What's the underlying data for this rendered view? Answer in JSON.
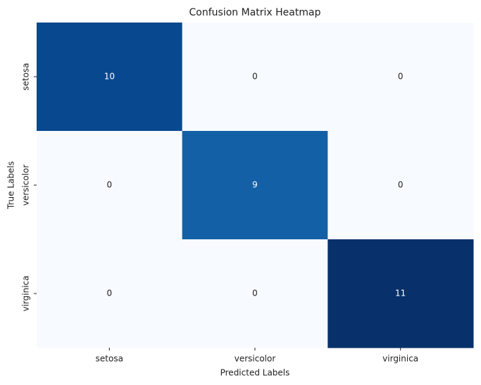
{
  "chart_data": {
    "type": "heatmap",
    "title": "Confusion Matrix Heatmap",
    "x_label": "Predicted Labels",
    "y_label": "True Labels",
    "x_categories": [
      "setosa",
      "versicolor",
      "virginica"
    ],
    "y_categories": [
      "setosa",
      "versicolor",
      "virginica"
    ],
    "values": [
      [
        10,
        0,
        0
      ],
      [
        0,
        9,
        0
      ],
      [
        0,
        0,
        11
      ]
    ],
    "colormap": [
      "#f7fbff",
      "#deebf7",
      "#c6dbef",
      "#9ecae1",
      "#6baed6",
      "#4292c6",
      "#2171b5",
      "#08519c",
      "#08306b"
    ]
  }
}
